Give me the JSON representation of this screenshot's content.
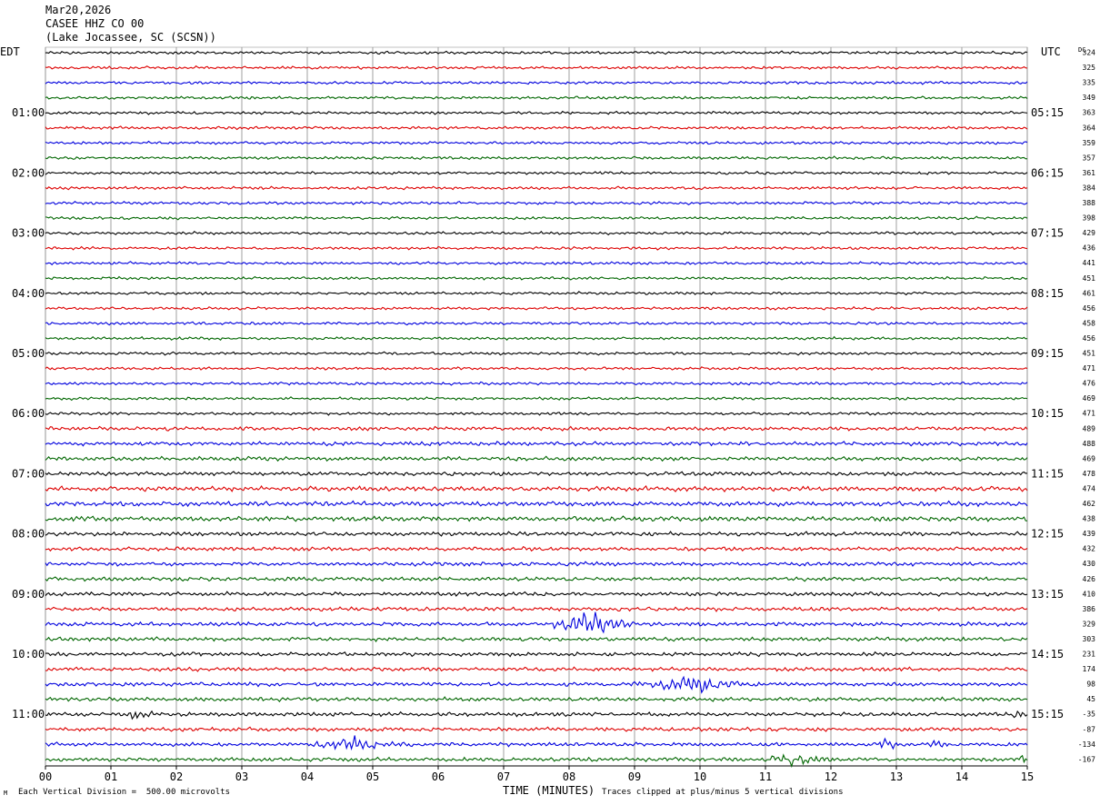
{
  "header": {
    "date": "Mar20,2026",
    "station": "CASEE HHZ CO 00",
    "location": "(Lake Jocassee, SC (SCSN))"
  },
  "left_axis_title": "EDT",
  "right_axis_title": "UTC",
  "dc_label": "DC",
  "footer": {
    "scale_note": "Each Vertical Division =  500.00 microvolts",
    "clip_note": "Traces clipped at plus/minus 5 vertical divisions",
    "corner_mark": "M"
  },
  "colors": {
    "trace_cycle": [
      "#000000",
      "#dd0000",
      "#0000dd",
      "#006600"
    ],
    "grid": "#888888"
  },
  "chart_data": {
    "type": "line",
    "title": "",
    "xlabel": "TIME (MINUTES)",
    "xlim": [
      0,
      15
    ],
    "x_ticks": [
      "00",
      "01",
      "02",
      "03",
      "04",
      "05",
      "06",
      "07",
      "08",
      "09",
      "10",
      "11",
      "12",
      "13",
      "14",
      "15"
    ],
    "trace_count": 48,
    "left_time_labels": [
      "01:00",
      "02:00",
      "03:00",
      "04:00",
      "05:00",
      "06:00",
      "07:00",
      "08:00",
      "09:00",
      "10:00",
      "11:00"
    ],
    "right_time_labels": [
      "05:15",
      "06:15",
      "07:15",
      "08:15",
      "09:15",
      "10:15",
      "11:15",
      "12:15",
      "13:15",
      "14:15",
      "15:15"
    ],
    "dc_offsets": [
      "324",
      "325",
      "335",
      "349",
      "363",
      "364",
      "359",
      "357",
      "361",
      "384",
      "388",
      "398",
      "429",
      "436",
      "441",
      "451",
      "461",
      "456",
      "458",
      "456",
      "451",
      "471",
      "476",
      "469",
      "471",
      "489",
      "488",
      "469",
      "478",
      "474",
      "462",
      "438",
      "439",
      "432",
      "430",
      "426",
      "410",
      "386",
      "329",
      "303",
      "231",
      "174",
      "98",
      "45",
      "-35",
      "-87",
      "-134",
      "-167"
    ],
    "events": [
      {
        "trace": 38,
        "start_min": 7.6,
        "peak_min": 8.4,
        "end_min": 9.4,
        "amplitude": 3.5
      },
      {
        "trace": 42,
        "start_min": 8.9,
        "peak_min": 10.1,
        "end_min": 11.0,
        "amplitude": 2.6
      },
      {
        "trace": 44,
        "start_min": 1.25,
        "peak_min": 1.35,
        "end_min": 1.8,
        "amplitude": 1.7
      },
      {
        "trace": 44,
        "start_min": 14.6,
        "peak_min": 14.9,
        "end_min": 15.0,
        "amplitude": 1.2
      },
      {
        "trace": 46,
        "start_min": 4.0,
        "peak_min": 4.75,
        "end_min": 5.6,
        "amplitude": 2.6
      },
      {
        "trace": 46,
        "start_min": 12.6,
        "peak_min": 12.9,
        "end_min": 13.2,
        "amplitude": 1.5
      },
      {
        "trace": 46,
        "start_min": 13.4,
        "peak_min": 13.7,
        "end_min": 13.9,
        "amplitude": 1.3
      },
      {
        "trace": 47,
        "start_min": 10.9,
        "peak_min": 11.5,
        "end_min": 12.2,
        "amplitude": 2.4
      },
      {
        "trace": 47,
        "start_min": 14.7,
        "peak_min": 15.0,
        "end_min": 15.0,
        "amplitude": 1.1
      }
    ]
  }
}
